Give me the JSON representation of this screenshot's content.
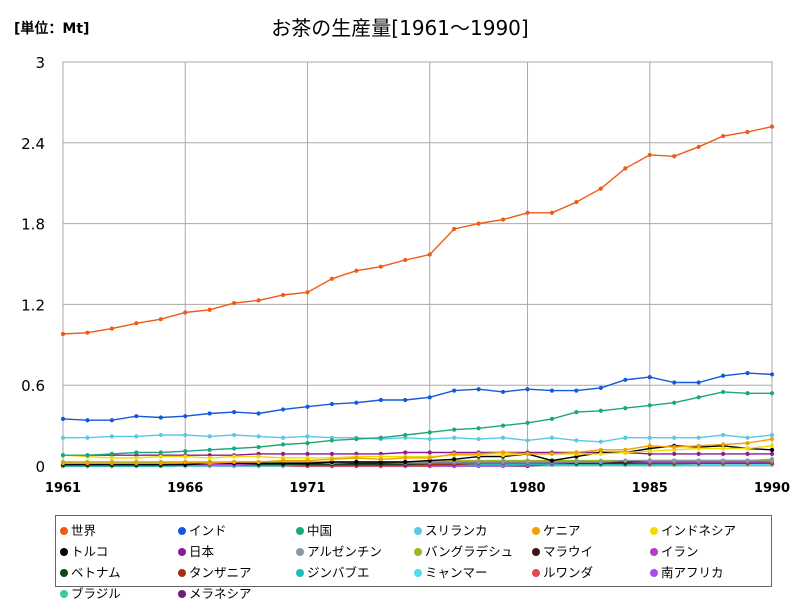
{
  "unit_label": "[単位：Mt]",
  "chart_data": {
    "type": "line",
    "title": "お茶の生産量[1961～1990]",
    "xlabel": "",
    "ylabel": "",
    "x": [
      1961,
      1962,
      1963,
      1964,
      1965,
      1966,
      1967,
      1968,
      1969,
      1970,
      1971,
      1972,
      1973,
      1974,
      1975,
      1976,
      1977,
      1978,
      1979,
      1980,
      1981,
      1982,
      1983,
      1984,
      1985,
      1986,
      1987,
      1988,
      1989,
      1990
    ],
    "xticks": [
      "1961",
      "1966",
      "1971",
      "1976",
      "1980",
      "1985",
      "1990"
    ],
    "ylim": [
      0,
      3
    ],
    "yticks": [
      "0",
      "0.6",
      "1.2",
      "1.8",
      "2.4",
      "3"
    ],
    "grid": true,
    "legend_position": "bottom",
    "series": [
      {
        "name": "世界",
        "color": "#f05a14",
        "values": [
          0.98,
          0.99,
          1.02,
          1.06,
          1.09,
          1.14,
          1.16,
          1.21,
          1.23,
          1.27,
          1.29,
          1.39,
          1.45,
          1.48,
          1.53,
          1.57,
          1.76,
          1.8,
          1.83,
          1.88,
          1.88,
          1.96,
          2.06,
          2.21,
          2.31,
          2.3,
          2.37,
          2.45,
          2.48,
          2.52
        ]
      },
      {
        "name": "インド",
        "color": "#1458dc",
        "values": [
          0.35,
          0.34,
          0.34,
          0.37,
          0.36,
          0.37,
          0.39,
          0.4,
          0.39,
          0.42,
          0.44,
          0.46,
          0.47,
          0.49,
          0.49,
          0.51,
          0.56,
          0.57,
          0.55,
          0.57,
          0.56,
          0.56,
          0.58,
          0.64,
          0.66,
          0.62,
          0.62,
          0.67,
          0.69,
          0.68
        ]
      },
      {
        "name": "中国",
        "color": "#1aa878",
        "values": [
          0.08,
          0.08,
          0.09,
          0.1,
          0.1,
          0.11,
          0.12,
          0.13,
          0.14,
          0.16,
          0.17,
          0.19,
          0.2,
          0.21,
          0.23,
          0.25,
          0.27,
          0.28,
          0.3,
          0.32,
          0.35,
          0.4,
          0.41,
          0.43,
          0.45,
          0.47,
          0.51,
          0.55,
          0.54,
          0.54
        ]
      },
      {
        "name": "スリランカ",
        "color": "#5ac8e6",
        "values": [
          0.21,
          0.21,
          0.22,
          0.22,
          0.23,
          0.23,
          0.22,
          0.23,
          0.22,
          0.21,
          0.22,
          0.21,
          0.21,
          0.2,
          0.21,
          0.2,
          0.21,
          0.2,
          0.21,
          0.19,
          0.21,
          0.19,
          0.18,
          0.21,
          0.21,
          0.21,
          0.21,
          0.23,
          0.21,
          0.23
        ]
      },
      {
        "name": "ケニア",
        "color": "#f0a000",
        "values": [
          0.02,
          0.02,
          0.02,
          0.02,
          0.02,
          0.03,
          0.02,
          0.03,
          0.03,
          0.04,
          0.04,
          0.05,
          0.06,
          0.05,
          0.06,
          0.06,
          0.09,
          0.09,
          0.1,
          0.09,
          0.09,
          0.1,
          0.12,
          0.12,
          0.15,
          0.14,
          0.15,
          0.16,
          0.17,
          0.2
        ]
      },
      {
        "name": "インドネシア",
        "color": "#f0dc00",
        "values": [
          0.08,
          0.07,
          0.06,
          0.06,
          0.07,
          0.07,
          0.06,
          0.07,
          0.07,
          0.06,
          0.06,
          0.06,
          0.07,
          0.07,
          0.07,
          0.07,
          0.08,
          0.08,
          0.08,
          0.09,
          0.09,
          0.09,
          0.09,
          0.1,
          0.11,
          0.12,
          0.13,
          0.13,
          0.13,
          0.15
        ]
      },
      {
        "name": "トルコ",
        "color": "#000000",
        "values": [
          0.01,
          0.01,
          0.01,
          0.01,
          0.01,
          0.01,
          0.02,
          0.02,
          0.02,
          0.02,
          0.02,
          0.03,
          0.03,
          0.03,
          0.03,
          0.04,
          0.05,
          0.07,
          0.07,
          0.09,
          0.04,
          0.07,
          0.1,
          0.1,
          0.13,
          0.15,
          0.14,
          0.15,
          0.13,
          0.12
        ]
      },
      {
        "name": "日本",
        "color": "#8c1c96",
        "values": [
          0.08,
          0.08,
          0.08,
          0.08,
          0.08,
          0.08,
          0.08,
          0.08,
          0.09,
          0.09,
          0.09,
          0.09,
          0.09,
          0.09,
          0.1,
          0.1,
          0.1,
          0.1,
          0.1,
          0.1,
          0.1,
          0.1,
          0.1,
          0.1,
          0.09,
          0.09,
          0.09,
          0.09,
          0.09,
          0.09
        ]
      },
      {
        "name": "アルゼンチン",
        "color": "#8a96a0",
        "values": [
          0.01,
          0.01,
          0.01,
          0.02,
          0.02,
          0.02,
          0.02,
          0.02,
          0.02,
          0.02,
          0.03,
          0.02,
          0.03,
          0.03,
          0.03,
          0.03,
          0.03,
          0.03,
          0.03,
          0.03,
          0.03,
          0.03,
          0.03,
          0.04,
          0.04,
          0.04,
          0.04,
          0.04,
          0.04,
          0.05
        ]
      },
      {
        "name": "バングラデシュ",
        "color": "#a0b428",
        "values": [
          0.03,
          0.03,
          0.03,
          0.03,
          0.03,
          0.03,
          0.03,
          0.03,
          0.03,
          0.03,
          0.03,
          0.03,
          0.03,
          0.03,
          0.03,
          0.03,
          0.04,
          0.04,
          0.04,
          0.04,
          0.04,
          0.04,
          0.04,
          0.04,
          0.04,
          0.04,
          0.04,
          0.04,
          0.04,
          0.04
        ]
      },
      {
        "name": "マラウイ",
        "color": "#3c1414",
        "values": [
          0.01,
          0.01,
          0.01,
          0.01,
          0.01,
          0.01,
          0.02,
          0.02,
          0.02,
          0.02,
          0.02,
          0.02,
          0.02,
          0.02,
          0.03,
          0.03,
          0.03,
          0.03,
          0.03,
          0.03,
          0.03,
          0.03,
          0.03,
          0.03,
          0.04,
          0.04,
          0.04,
          0.04,
          0.04,
          0.04
        ]
      },
      {
        "name": "イラン",
        "color": "#b43cc8",
        "values": [
          0.01,
          0.01,
          0.01,
          0.01,
          0.01,
          0.01,
          0.01,
          0.01,
          0.02,
          0.02,
          0.02,
          0.02,
          0.02,
          0.02,
          0.02,
          0.02,
          0.02,
          0.02,
          0.02,
          0.02,
          0.02,
          0.03,
          0.03,
          0.03,
          0.03,
          0.03,
          0.03,
          0.03,
          0.03,
          0.03
        ]
      },
      {
        "name": "ベトナム",
        "color": "#14461e",
        "values": [
          0.01,
          0.01,
          0.01,
          0.01,
          0.01,
          0.01,
          0.01,
          0.01,
          0.01,
          0.01,
          0.01,
          0.01,
          0.01,
          0.01,
          0.01,
          0.02,
          0.02,
          0.02,
          0.02,
          0.02,
          0.02,
          0.02,
          0.02,
          0.02,
          0.03,
          0.03,
          0.03,
          0.03,
          0.03,
          0.03
        ]
      },
      {
        "name": "タンザニア",
        "color": "#a03214",
        "values": [
          0.01,
          0.01,
          0.01,
          0.01,
          0.01,
          0.01,
          0.01,
          0.01,
          0.01,
          0.01,
          0.01,
          0.01,
          0.01,
          0.01,
          0.01,
          0.01,
          0.01,
          0.02,
          0.02,
          0.02,
          0.02,
          0.02,
          0.02,
          0.02,
          0.02,
          0.02,
          0.02,
          0.02,
          0.02,
          0.02
        ]
      },
      {
        "name": "ジンバブエ",
        "color": "#1ebeb4",
        "values": [
          0.0,
          0.0,
          0.0,
          0.0,
          0.0,
          0.01,
          0.01,
          0.01,
          0.01,
          0.01,
          0.01,
          0.01,
          0.01,
          0.01,
          0.01,
          0.01,
          0.01,
          0.01,
          0.01,
          0.01,
          0.01,
          0.01,
          0.01,
          0.01,
          0.01,
          0.01,
          0.02,
          0.02,
          0.02,
          0.02
        ]
      },
      {
        "name": "ミャンマー",
        "color": "#50dcf0",
        "values": [
          0.0,
          0.0,
          0.0,
          0.0,
          0.0,
          0.0,
          0.0,
          0.0,
          0.0,
          0.0,
          0.01,
          0.01,
          0.01,
          0.01,
          0.01,
          0.01,
          0.01,
          0.01,
          0.01,
          0.01,
          0.01,
          0.01,
          0.01,
          0.01,
          0.01,
          0.01,
          0.01,
          0.01,
          0.01,
          0.01
        ]
      },
      {
        "name": "ルワンダ",
        "color": "#e64650",
        "values": [
          0.0,
          0.0,
          0.0,
          0.0,
          0.0,
          0.0,
          0.0,
          0.0,
          0.0,
          0.0,
          0.0,
          0.0,
          0.0,
          0.0,
          0.0,
          0.0,
          0.01,
          0.01,
          0.01,
          0.01,
          0.01,
          0.01,
          0.01,
          0.01,
          0.01,
          0.01,
          0.01,
          0.01,
          0.01,
          0.01
        ]
      },
      {
        "name": "南アフリカ",
        "color": "#a050f0",
        "values": [
          0.0,
          0.0,
          0.0,
          0.0,
          0.0,
          0.0,
          0.0,
          0.0,
          0.0,
          0.0,
          0.0,
          0.0,
          0.0,
          0.0,
          0.0,
          0.0,
          0.0,
          0.0,
          0.0,
          0.01,
          0.01,
          0.01,
          0.01,
          0.01,
          0.01,
          0.01,
          0.01,
          0.01,
          0.01,
          0.01
        ]
      },
      {
        "name": "ブラジル",
        "color": "#3cc8aa",
        "values": [
          0.0,
          0.0,
          0.0,
          0.0,
          0.0,
          0.0,
          0.0,
          0.0,
          0.0,
          0.0,
          0.0,
          0.0,
          0.01,
          0.01,
          0.01,
          0.01,
          0.01,
          0.01,
          0.01,
          0.01,
          0.01,
          0.01,
          0.01,
          0.01,
          0.01,
          0.01,
          0.01,
          0.01,
          0.01,
          0.01
        ]
      },
      {
        "name": "メラネシア",
        "color": "#6e1e78",
        "values": [
          0.0,
          0.0,
          0.0,
          0.0,
          0.0,
          0.0,
          0.0,
          0.0,
          0.0,
          0.0,
          0.0,
          0.0,
          0.0,
          0.0,
          0.0,
          0.0,
          0.0,
          0.0,
          0.0,
          0.0,
          0.01,
          0.01,
          0.01,
          0.01,
          0.01,
          0.01,
          0.01,
          0.01,
          0.01,
          0.01
        ]
      }
    ]
  }
}
